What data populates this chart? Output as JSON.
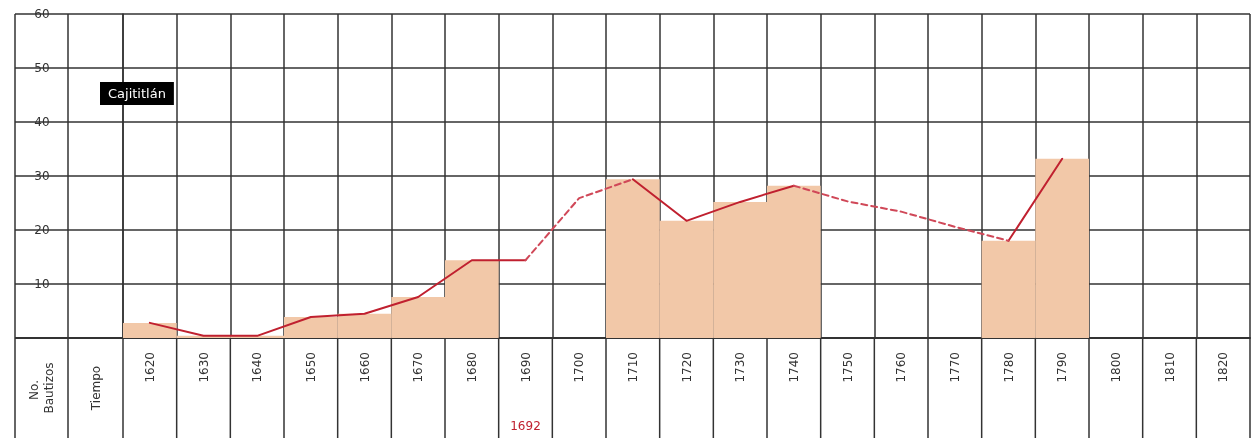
{
  "chart_data": {
    "type": "bar",
    "title": "Cajititlán",
    "categories": [
      "1620",
      "1630",
      "1640",
      "1650",
      "1660",
      "1670",
      "1680",
      "1690",
      "1700",
      "1710",
      "1720",
      "1730",
      "1740",
      "1750",
      "1760",
      "1770",
      "1780",
      "1790",
      "1800",
      "1810",
      "1820"
    ],
    "series": [
      {
        "color": "#f2c8a8",
        "values": [
          2.8,
          0.4,
          0.4,
          3.9,
          4.5,
          7.6,
          14.4,
          null,
          null,
          29.4,
          21.7,
          25.2,
          28.2,
          null,
          null,
          null,
          18,
          33.2,
          null,
          null,
          null
        ]
      },
      {
        "type": "line",
        "color": "#c0202f",
        "line_style": "solid",
        "values": [
          2.8,
          0.4,
          0.4,
          3.9,
          4.5,
          7.6,
          14.4,
          14.4,
          null,
          29.4,
          21.7,
          25.2,
          28.2,
          null,
          null,
          null,
          18,
          33.2,
          null,
          null,
          null
        ]
      },
      {
        "type": "line",
        "color": "#d04858",
        "line_style": "dashed",
        "values": [
          null,
          null,
          null,
          null,
          null,
          null,
          null,
          14.4,
          25.9,
          29.4,
          null,
          null,
          28.2,
          25.3,
          23.4,
          20.6,
          18,
          null,
          null,
          null,
          null
        ]
      }
    ],
    "ylim": [
      0,
      60
    ],
    "yticks": [
      10,
      20,
      30,
      40,
      50,
      60
    ],
    "grid": true,
    "marker": "none",
    "annotations": [
      "No. Bautizos",
      "Tiempo",
      "1692"
    ]
  }
}
